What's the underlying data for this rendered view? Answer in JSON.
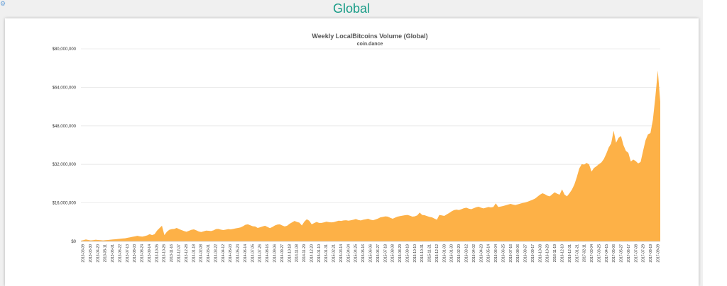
{
  "page": {
    "title": "Global",
    "corner_glyph": "⚙"
  },
  "colors": {
    "title": "#1a9d88",
    "area": "#fdb147",
    "grid": "#e6e6e6"
  },
  "chart_data": {
    "type": "area",
    "title": "Weekly LocalBitcoins Volume (Global)",
    "subtitle": "coin.dance",
    "xlabel": "",
    "ylabel": "",
    "ylim": [
      0,
      80000000
    ],
    "grid": true,
    "legend": "none",
    "y_ticks": [
      "$0",
      "$16,000,000",
      "$32,000,000",
      "$48,000,000",
      "$64,000,000",
      "$80,000,000"
    ],
    "x_tick_labels": [
      "2013-03-09",
      "2013-03-30",
      "2013-04-20",
      "2013-05-11",
      "2013-06-01",
      "2013-06-22",
      "2013-07-13",
      "2013-08-03",
      "2013-08-24",
      "2013-09-14",
      "2013-10-05",
      "2013-10-26",
      "2013-11-16",
      "2013-12-07",
      "2013-12-28",
      "2014-01-18",
      "2014-02-08",
      "2014-03-01",
      "2014-03-22",
      "2014-04-12",
      "2014-05-03",
      "2014-05-24",
      "2014-06-14",
      "2014-07-05",
      "2014-07-26",
      "2014-08-16",
      "2014-09-06",
      "2014-09-27",
      "2014-10-18",
      "2014-11-08",
      "2014-11-29",
      "2014-12-20",
      "2015-01-10",
      "2015-01-31",
      "2015-02-21",
      "2015-03-14",
      "2015-04-04",
      "2015-04-25",
      "2015-05-16",
      "2015-06-06",
      "2015-06-27",
      "2015-07-18",
      "2015-08-08",
      "2015-08-29",
      "2015-09-19",
      "2015-10-10",
      "2015-10-31",
      "2015-11-21",
      "2015-12-12",
      "2016-01-09",
      "2016-01-30",
      "2016-02-20",
      "2016-03-12",
      "2016-04-02",
      "2016-04-23",
      "2016-05-14",
      "2016-06-04",
      "2016-06-25",
      "2016-07-16",
      "2016-08-06",
      "2016-08-27",
      "2016-09-17",
      "2016-10-08",
      "2016-10-29",
      "2016-11-19",
      "2016-12-10",
      "2016-12-31",
      "2017-01-21",
      "2017-02-11",
      "2017-03-04",
      "2017-03-25",
      "2017-04-15",
      "2017-05-06",
      "2017-05-27",
      "2017-06-17",
      "2017-07-08",
      "2017-07-29",
      "2017-08-19",
      "2017-09-09"
    ],
    "series": [
      {
        "values": [
          300000,
          500000,
          800000,
          600000,
          400000,
          500000,
          700000,
          600000,
          500000,
          400000,
          500000,
          600000,
          700000,
          800000,
          900000,
          1000000,
          1100000,
          1200000,
          1300000,
          1500000,
          1700000,
          1900000,
          2100000,
          2300000,
          2100000,
          2000000,
          2200000,
          2500000,
          3000000,
          2600000,
          3000000,
          4500000,
          5500000,
          6500000,
          2600000,
          4000000,
          4800000,
          5100000,
          5200000,
          5600000,
          5100000,
          4700000,
          4300000,
          4000000,
          4400000,
          4800000,
          5000000,
          4600000,
          4100000,
          3900000,
          4200000,
          4500000,
          4400000,
          4300000,
          4600000,
          5100000,
          5200000,
          4900000,
          4700000,
          4900000,
          5100000,
          5000000,
          5200000,
          5400000,
          5600000,
          5800000,
          6300000,
          6900000,
          7100000,
          6700000,
          6300000,
          6200000,
          5600000,
          5900000,
          6200000,
          6500000,
          6000000,
          5500000,
          6000000,
          6600000,
          7000000,
          7100000,
          6600000,
          6200000,
          6500000,
          7300000,
          7900000,
          8500000,
          8100000,
          7800000,
          6600000,
          8200000,
          9200000,
          8600000,
          7100000,
          7600000,
          8100000,
          7700000,
          7700000,
          7900000,
          8200000,
          8000000,
          7900000,
          8000000,
          8300000,
          8600000,
          8500000,
          8700000,
          8800000,
          8600000,
          8800000,
          9000000,
          9300000,
          8900000,
          8700000,
          9000000,
          9200000,
          9400000,
          9000000,
          8800000,
          9100000,
          9500000,
          10000000,
          10200000,
          10400000,
          10300000,
          9800000,
          9400000,
          9900000,
          10300000,
          10500000,
          10700000,
          10900000,
          11000000,
          10700000,
          10300000,
          10400000,
          10800000,
          12000000,
          11000000,
          10900000,
          10500000,
          10200000,
          10000000,
          9500000,
          9000000,
          11000000,
          10800000,
          10600000,
          11200000,
          11800000,
          12500000,
          13000000,
          13200000,
          13000000,
          13400000,
          13800000,
          14000000,
          13600000,
          13400000,
          13800000,
          14200000,
          14400000,
          14000000,
          13700000,
          14000000,
          14300000,
          14100000,
          14300000,
          15800000,
          14300000,
          14500000,
          14700000,
          15000000,
          15300000,
          15600000,
          15300000,
          15100000,
          15400000,
          15700000,
          16000000,
          16200000,
          16500000,
          16900000,
          17300000,
          17800000,
          18600000,
          19400000,
          20000000,
          19600000,
          19000000,
          18700000,
          19600000,
          20400000,
          19800000,
          19400000,
          21600000,
          19500000,
          18700000,
          20000000,
          21500000,
          23600000,
          26700000,
          30300000,
          32100000,
          31900000,
          32600000,
          32000000,
          29000000,
          30500000,
          31200000,
          32100000,
          32800000,
          34200000,
          36400000,
          39000000,
          40700000,
          46000000,
          41000000,
          43000000,
          43800000,
          40000000,
          37600000,
          36800000,
          33200000,
          34000000,
          33400000,
          32400000,
          33000000,
          37600000,
          42000000,
          44500000,
          45000000,
          50600000,
          60000000,
          71000000,
          58000000
        ]
      }
    ]
  }
}
